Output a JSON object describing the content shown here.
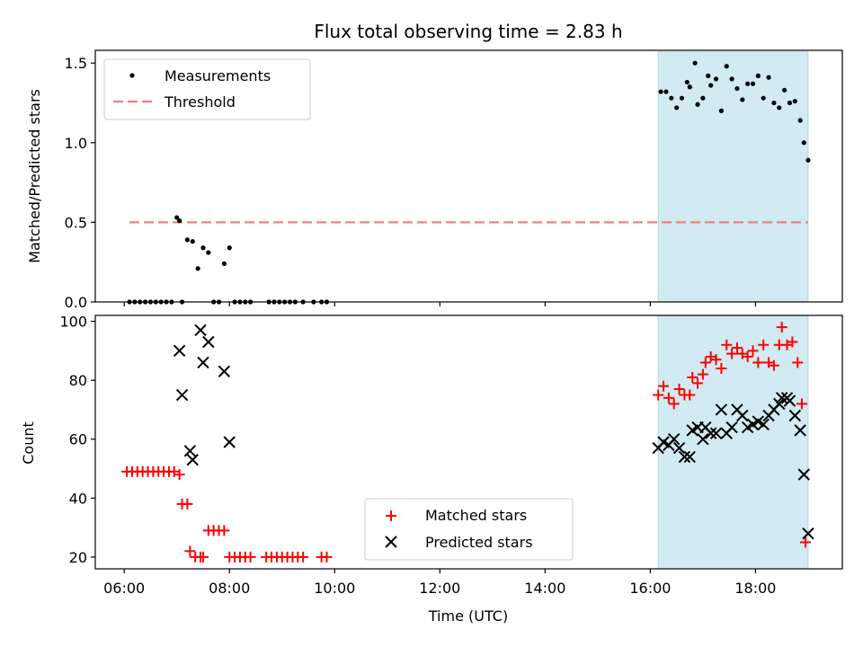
{
  "chart_data": [
    {
      "type": "scatter",
      "title": "Flux total observing time = 2.83 h",
      "ylabel": "Matched/Predicted stars",
      "xlabel": "",
      "x_unit": "hours (UTC)",
      "xlim": [
        5.45,
        19.65
      ],
      "ylim": [
        0,
        1.58
      ],
      "yticks": [
        "0.0",
        "0.5",
        "1.0",
        "1.5"
      ],
      "ytick_values": [
        0,
        0.5,
        1.0,
        1.5
      ],
      "xtick_values": [
        6,
        8,
        10,
        12,
        14,
        16,
        18
      ],
      "grid": false,
      "legend_position": "top-left",
      "shaded_region": {
        "x": [
          16.15,
          19.0
        ],
        "color": "#add8e6"
      },
      "threshold": {
        "name": "Threshold",
        "value": 0.5,
        "x": [
          6.1,
          19.0
        ],
        "color": "#f08080"
      },
      "series": [
        {
          "name": "Measurements",
          "marker": "dot",
          "color": "#000000",
          "x": [
            6.1,
            6.2,
            6.3,
            6.4,
            6.5,
            6.6,
            6.7,
            6.8,
            6.9,
            7.0,
            7.05,
            7.1,
            7.2,
            7.3,
            7.4,
            7.5,
            7.6,
            7.7,
            7.8,
            7.9,
            8.0,
            8.1,
            8.2,
            8.3,
            8.4,
            8.75,
            8.85,
            8.95,
            9.05,
            9.15,
            9.25,
            9.4,
            9.6,
            9.75,
            9.85,
            16.2,
            16.3,
            16.4,
            16.5,
            16.6,
            16.7,
            16.75,
            16.85,
            16.9,
            17.0,
            17.1,
            17.15,
            17.25,
            17.35,
            17.45,
            17.55,
            17.65,
            17.75,
            17.85,
            17.95,
            18.05,
            18.15,
            18.25,
            18.35,
            18.45,
            18.55,
            18.65,
            18.75,
            18.85,
            18.92,
            19.0
          ],
          "y": [
            0,
            0,
            0,
            0,
            0,
            0,
            0,
            0,
            0,
            0.53,
            0.51,
            0,
            0.39,
            0.38,
            0.21,
            0.34,
            0.31,
            0,
            0,
            0.24,
            0.34,
            0,
            0,
            0,
            0,
            0,
            0,
            0,
            0,
            0,
            0,
            0,
            0,
            0,
            0,
            1.32,
            1.32,
            1.28,
            1.22,
            1.28,
            1.38,
            1.35,
            1.5,
            1.24,
            1.28,
            1.42,
            1.36,
            1.4,
            1.2,
            1.48,
            1.4,
            1.34,
            1.27,
            1.37,
            1.37,
            1.42,
            1.28,
            1.41,
            1.25,
            1.22,
            1.33,
            1.25,
            1.26,
            1.14,
            1.0,
            0.89
          ]
        }
      ]
    },
    {
      "type": "scatter",
      "title": "",
      "ylabel": "Count",
      "xlabel": "Time (UTC)",
      "x_unit": "hours (UTC)",
      "xlim": [
        5.45,
        19.65
      ],
      "ylim": [
        16,
        102
      ],
      "yticks": [
        "20",
        "40",
        "60",
        "80",
        "100"
      ],
      "ytick_values": [
        20,
        40,
        60,
        80,
        100
      ],
      "xticks": [
        "06:00",
        "08:00",
        "10:00",
        "12:00",
        "14:00",
        "16:00",
        "18:00"
      ],
      "xtick_values": [
        6,
        8,
        10,
        12,
        14,
        16,
        18
      ],
      "grid": false,
      "legend_position": "bottom-center",
      "shaded_region": {
        "x": [
          16.15,
          19.0
        ],
        "color": "#add8e6"
      },
      "series": [
        {
          "name": "Matched stars",
          "marker": "plus",
          "color": "#ff0000",
          "x": [
            6.05,
            6.15,
            6.25,
            6.35,
            6.45,
            6.55,
            6.65,
            6.75,
            6.85,
            6.95,
            7.05,
            7.1,
            7.2,
            7.25,
            7.35,
            7.45,
            7.5,
            7.6,
            7.7,
            7.8,
            7.9,
            8.0,
            8.1,
            8.2,
            8.3,
            8.4,
            8.7,
            8.8,
            8.9,
            9.0,
            9.1,
            9.2,
            9.3,
            9.4,
            9.75,
            9.85,
            16.15,
            16.25,
            16.35,
            16.45,
            16.55,
            16.65,
            16.75,
            16.8,
            16.9,
            17.0,
            17.05,
            17.15,
            17.25,
            17.35,
            17.45,
            17.55,
            17.65,
            17.75,
            17.85,
            17.95,
            18.05,
            18.15,
            18.25,
            18.35,
            18.45,
            18.5,
            18.6,
            18.7,
            18.8,
            18.88,
            18.95
          ],
          "y": [
            49,
            49,
            49,
            49,
            49,
            49,
            49,
            49,
            49,
            49,
            48,
            38,
            38,
            22,
            20,
            20,
            20,
            29,
            29,
            29,
            29,
            20,
            20,
            20,
            20,
            20,
            20,
            20,
            20,
            20,
            20,
            20,
            20,
            20,
            20,
            20,
            75,
            78,
            74,
            72,
            77,
            75,
            75,
            81,
            79,
            82,
            86,
            88,
            87,
            84,
            92,
            89,
            91,
            89,
            88,
            90,
            86,
            92,
            86,
            85,
            92,
            98,
            92,
            93,
            86,
            72,
            25
          ]
        },
        {
          "name": "Predicted stars",
          "marker": "x",
          "color": "#000000",
          "x": [
            7.05,
            7.1,
            7.25,
            7.3,
            7.45,
            7.5,
            7.6,
            7.9,
            8.0,
            16.15,
            16.25,
            16.35,
            16.45,
            16.55,
            16.65,
            16.75,
            16.8,
            16.9,
            17.0,
            17.05,
            17.15,
            17.25,
            17.35,
            17.45,
            17.55,
            17.65,
            17.75,
            17.85,
            17.95,
            18.05,
            18.15,
            18.25,
            18.35,
            18.45,
            18.5,
            18.6,
            18.65,
            18.75,
            18.85,
            18.92,
            19.0
          ],
          "y": [
            90,
            75,
            56,
            53,
            97,
            86,
            93,
            83,
            59,
            57,
            59,
            58,
            60,
            57,
            54,
            54,
            63,
            64,
            60,
            64,
            62,
            62,
            70,
            62,
            64,
            70,
            68,
            64,
            65,
            66,
            65,
            68,
            70,
            72,
            74,
            74,
            73,
            68,
            63,
            48,
            28
          ]
        }
      ]
    }
  ]
}
